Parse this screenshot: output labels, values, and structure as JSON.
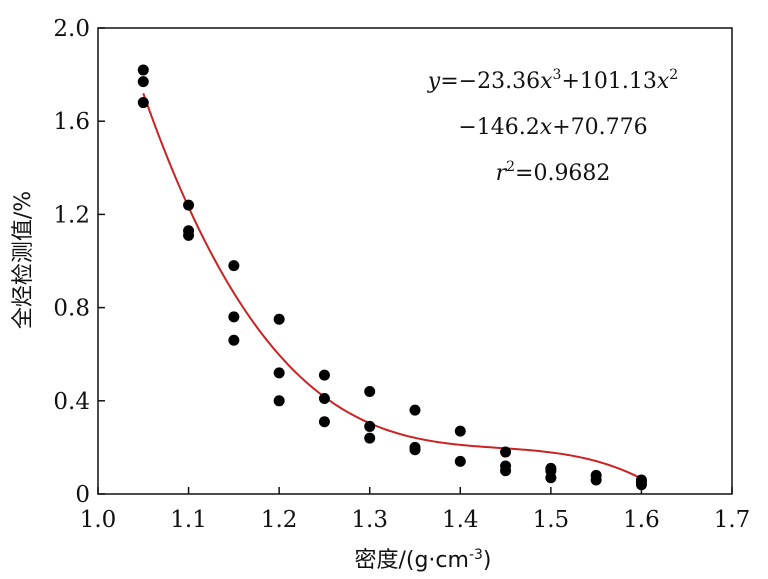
{
  "chart_data": {
    "type": "scatter",
    "xlabel_main": "密度/(g·cm",
    "xlabel_sup": "-3",
    "xlabel_close": ")",
    "ylabel": "全烃检测值/%",
    "xlim": [
      1.0,
      1.7
    ],
    "ylim": [
      0,
      2.0
    ],
    "x_ticks": [
      1.0,
      1.1,
      1.2,
      1.3,
      1.4,
      1.5,
      1.6,
      1.7
    ],
    "y_ticks": [
      0,
      0.4,
      0.8,
      1.2,
      1.6,
      2.0
    ],
    "x_tick_labels": [
      "1.0",
      "1.1",
      "1.2",
      "1.3",
      "1.4",
      "1.5",
      "1.6",
      "1.7"
    ],
    "y_tick_labels": [
      "0",
      "0.4",
      "0.8",
      "1.2",
      "1.6",
      "2.0"
    ],
    "points": [
      {
        "x": 1.05,
        "y": 1.82
      },
      {
        "x": 1.05,
        "y": 1.77
      },
      {
        "x": 1.05,
        "y": 1.68
      },
      {
        "x": 1.1,
        "y": 1.24
      },
      {
        "x": 1.1,
        "y": 1.13
      },
      {
        "x": 1.1,
        "y": 1.11
      },
      {
        "x": 1.15,
        "y": 0.98
      },
      {
        "x": 1.15,
        "y": 0.76
      },
      {
        "x": 1.15,
        "y": 0.66
      },
      {
        "x": 1.2,
        "y": 0.75
      },
      {
        "x": 1.2,
        "y": 0.52
      },
      {
        "x": 1.2,
        "y": 0.4
      },
      {
        "x": 1.25,
        "y": 0.51
      },
      {
        "x": 1.25,
        "y": 0.41
      },
      {
        "x": 1.25,
        "y": 0.31
      },
      {
        "x": 1.3,
        "y": 0.44
      },
      {
        "x": 1.3,
        "y": 0.29
      },
      {
        "x": 1.3,
        "y": 0.24
      },
      {
        "x": 1.35,
        "y": 0.36
      },
      {
        "x": 1.35,
        "y": 0.2
      },
      {
        "x": 1.35,
        "y": 0.19
      },
      {
        "x": 1.4,
        "y": 0.27
      },
      {
        "x": 1.4,
        "y": 0.14
      },
      {
        "x": 1.45,
        "y": 0.18
      },
      {
        "x": 1.45,
        "y": 0.12
      },
      {
        "x": 1.45,
        "y": 0.1
      },
      {
        "x": 1.5,
        "y": 0.11
      },
      {
        "x": 1.5,
        "y": 0.1
      },
      {
        "x": 1.5,
        "y": 0.07
      },
      {
        "x": 1.55,
        "y": 0.08
      },
      {
        "x": 1.55,
        "y": 0.06
      },
      {
        "x": 1.6,
        "y": 0.06
      },
      {
        "x": 1.6,
        "y": 0.05
      },
      {
        "x": 1.6,
        "y": 0.04
      }
    ],
    "fit": {
      "type": "cubic",
      "coefficients": [
        -23.36,
        101.13,
        -146.2,
        70.776
      ],
      "x_range": [
        1.05,
        1.6
      ],
      "r2": 0.9682,
      "color": "#cc2222"
    },
    "equation": {
      "line1": [
        "y",
        "=−23.36",
        "x",
        "3",
        "+101.13",
        "x",
        "2"
      ],
      "line2": [
        "−146.2",
        "x",
        "+70.776"
      ],
      "line3": [
        "r",
        "2",
        "=0.9682"
      ]
    },
    "point_color": "#000000",
    "grid": false,
    "legend": "none"
  }
}
